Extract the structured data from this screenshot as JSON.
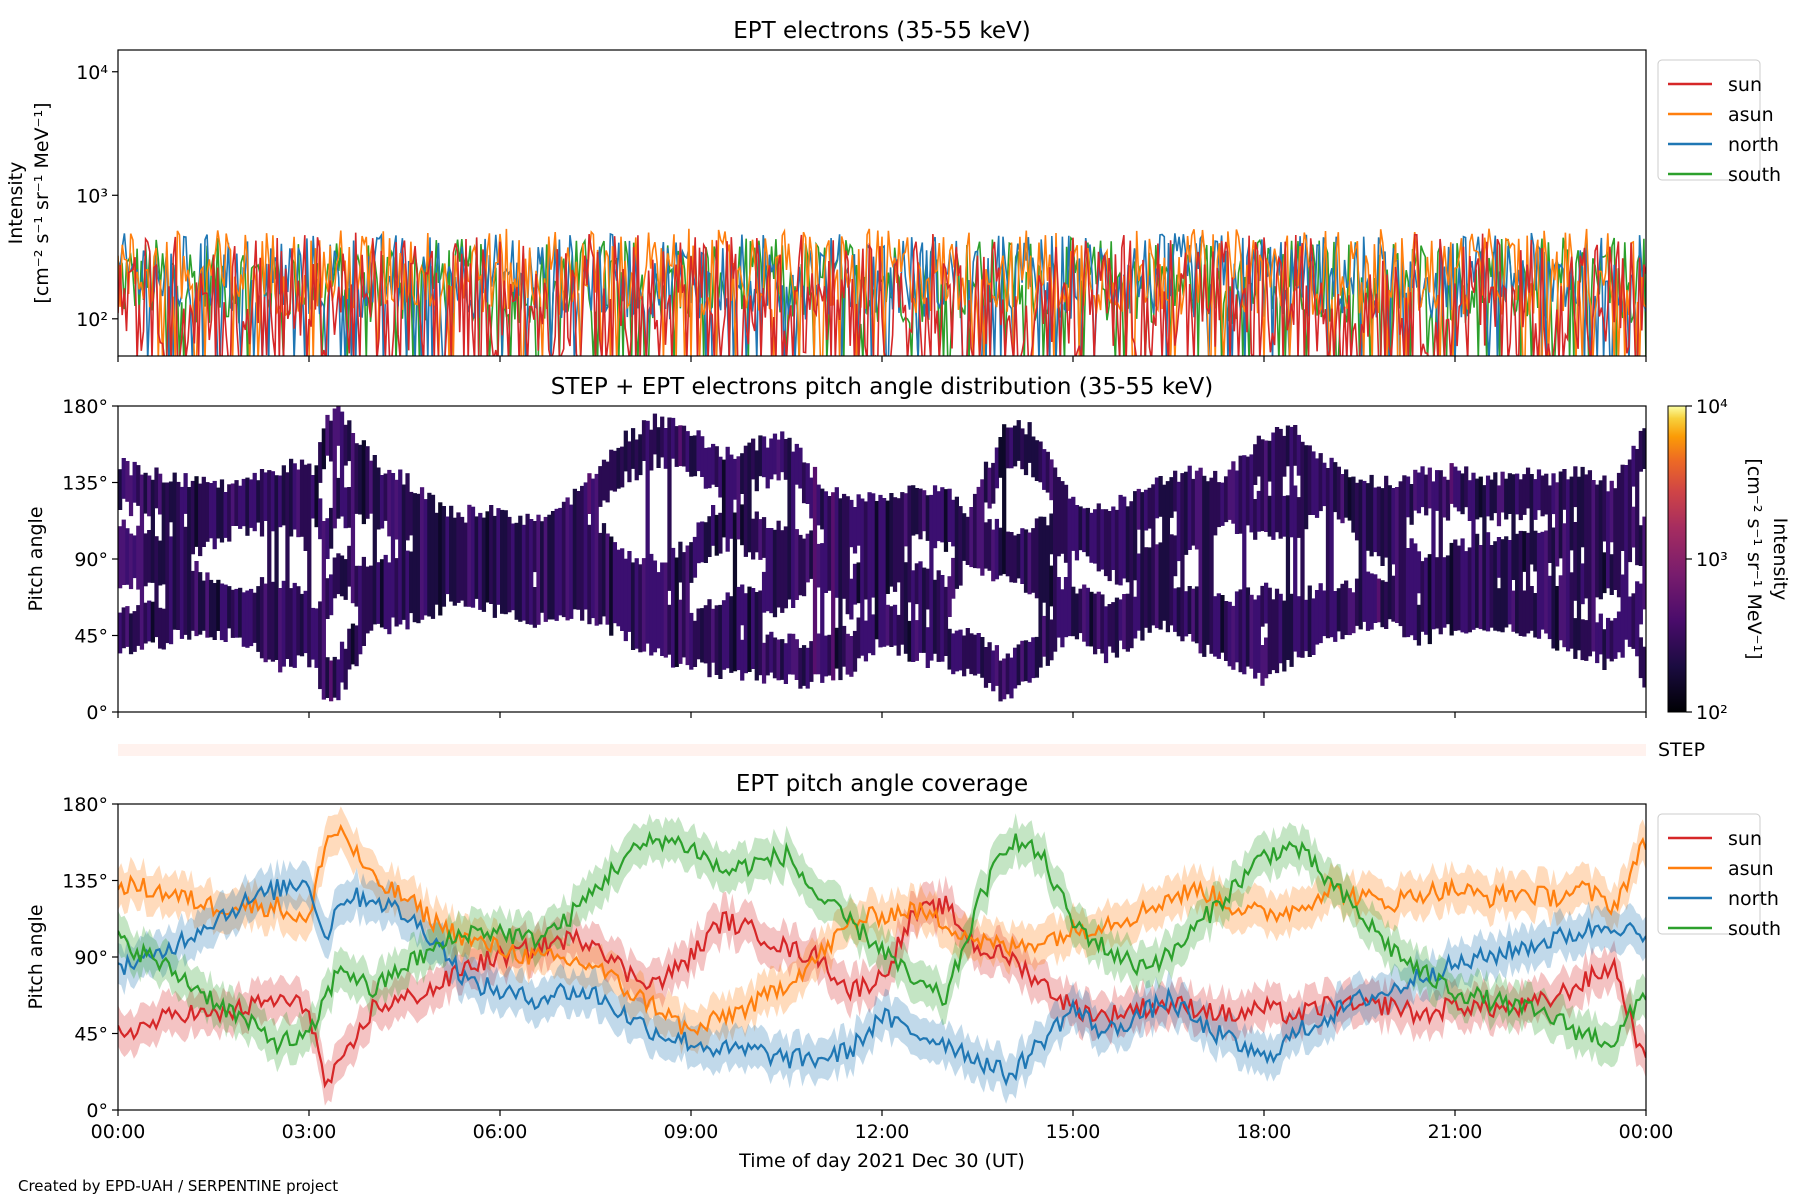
{
  "credit": "Created by EPD-UAH / SERPENTINE project",
  "chart_data": [
    {
      "id": "intensity",
      "type": "line",
      "title": "EPT electrons (35-55 keV)",
      "ylabel_lines": [
        "Intensity",
        "[cm⁻² s⁻¹ sr⁻¹ MeV⁻¹]"
      ],
      "yscale": "log",
      "ylim": [
        50,
        15000
      ],
      "yticks": [
        100,
        1000,
        10000
      ],
      "ytick_labels": [
        "10²",
        "10³",
        "10⁴"
      ],
      "xlim_hours": [
        0,
        24
      ],
      "legend_loc": "outside right",
      "series": [
        {
          "name": "sun",
          "color": "#d62728",
          "typical": 160,
          "spread": 0.55
        },
        {
          "name": "asun",
          "color": "#ff7f0e",
          "typical": 260,
          "spread": 0.35
        },
        {
          "name": "north",
          "color": "#1f77b4",
          "typical": 240,
          "spread": 0.35
        },
        {
          "name": "south",
          "color": "#2ca02c",
          "typical": 220,
          "spread": 0.35
        }
      ]
    },
    {
      "id": "pad",
      "type": "heatmap",
      "title": "STEP + EPT electrons pitch angle distribution (35-55 keV)",
      "ylabel": "Pitch angle",
      "ylim": [
        0,
        180
      ],
      "yticks": [
        0,
        45,
        90,
        135,
        180
      ],
      "ytick_labels": [
        "0°",
        "45°",
        "90°",
        "135°",
        "180°"
      ],
      "colorbar": {
        "label_lines": [
          "Intensity",
          "[cm⁻² s⁻¹ sr⁻¹ MeV⁻¹]"
        ],
        "scale": "log",
        "range": [
          100,
          10000
        ],
        "tick_labels": [
          "10²",
          "10³",
          "10⁴"
        ],
        "colormap": "inferno"
      },
      "typical_intensity": 200
    },
    {
      "id": "step",
      "type": "heatmap",
      "label": "STEP"
    },
    {
      "id": "coverage",
      "type": "line",
      "title": "EPT pitch angle coverage",
      "ylabel": "Pitch angle",
      "ylim": [
        0,
        180
      ],
      "yticks": [
        0,
        45,
        90,
        135,
        180
      ],
      "ytick_labels": [
        "0°",
        "45°",
        "90°",
        "135°",
        "180°"
      ],
      "xlabel": "Time of day 2021 Dec 30 (UT)",
      "xticks_hours": [
        0,
        3,
        6,
        9,
        12,
        15,
        18,
        21,
        24
      ],
      "xtick_labels": [
        "00:00",
        "03:00",
        "06:00",
        "09:00",
        "12:00",
        "15:00",
        "18:00",
        "21:00",
        "00:00"
      ],
      "legend_loc": "outside right",
      "band_halfwidth_deg": 12,
      "series": [
        {
          "name": "sun",
          "color": "#d62728",
          "x": [
            0,
            0.5,
            1,
            1.5,
            2,
            2.5,
            3,
            3.25,
            3.5,
            4,
            4.5,
            5,
            5.5,
            6,
            6.5,
            7,
            7.5,
            8,
            8.5,
            9,
            9.5,
            10,
            10.5,
            11,
            11.5,
            12,
            12.5,
            13,
            13.5,
            14,
            14.5,
            15,
            15.5,
            16,
            16.5,
            17,
            17.5,
            18,
            18.5,
            19,
            19.5,
            20,
            20.5,
            21,
            21.5,
            22,
            22.5,
            23,
            23.5,
            24
          ],
          "y": [
            45,
            50,
            58,
            55,
            60,
            65,
            60,
            15,
            25,
            60,
            65,
            72,
            85,
            90,
            95,
            100,
            100,
            80,
            75,
            90,
            112,
            105,
            95,
            90,
            70,
            78,
            115,
            120,
            95,
            90,
            75,
            60,
            55,
            60,
            62,
            60,
            55,
            60,
            55,
            62,
            60,
            62,
            55,
            62,
            60,
            60,
            65,
            75,
            85,
            25
          ]
        },
        {
          "name": "asun",
          "color": "#ff7f0e",
          "x": [
            0,
            0.5,
            1,
            1.5,
            2,
            2.5,
            3,
            3.25,
            3.5,
            4,
            4.5,
            5,
            5.5,
            6,
            6.5,
            7,
            7.5,
            8,
            8.5,
            9,
            9.5,
            10,
            10.5,
            11,
            11.5,
            12,
            12.5,
            13,
            13.5,
            14,
            14.5,
            15,
            15.5,
            16,
            16.5,
            17,
            17.5,
            18,
            18.5,
            19,
            19.5,
            20,
            20.5,
            21,
            21.5,
            22,
            22.5,
            23,
            23.5,
            24
          ],
          "y": [
            133,
            130,
            125,
            120,
            120,
            120,
            110,
            158,
            165,
            135,
            125,
            110,
            100,
            95,
            90,
            88,
            85,
            70,
            60,
            45,
            55,
            62,
            75,
            90,
            110,
            115,
            118,
            110,
            100,
            95,
            100,
            105,
            110,
            115,
            125,
            130,
            120,
            115,
            118,
            130,
            125,
            122,
            128,
            130,
            125,
            128,
            125,
            130,
            120,
            158
          ]
        },
        {
          "name": "north",
          "color": "#1f77b4",
          "x": [
            0,
            0.5,
            1,
            1.5,
            2,
            2.5,
            3,
            3.25,
            3.5,
            4,
            4.5,
            5,
            5.5,
            6,
            6.5,
            7,
            7.5,
            8,
            8.5,
            9,
            9.5,
            10,
            10.5,
            11,
            11.5,
            12,
            12.5,
            13,
            13.5,
            14,
            14.5,
            15,
            15.5,
            16,
            16.5,
            17,
            17.5,
            18,
            18.5,
            19,
            19.5,
            20,
            20.5,
            21,
            21.5,
            22,
            22.5,
            23,
            23.5,
            24
          ],
          "y": [
            85,
            88,
            100,
            112,
            122,
            130,
            135,
            100,
            125,
            125,
            115,
            100,
            75,
            70,
            65,
            70,
            68,
            55,
            45,
            40,
            35,
            35,
            30,
            30,
            35,
            55,
            45,
            40,
            30,
            20,
            40,
            60,
            45,
            55,
            65,
            50,
            40,
            30,
            45,
            55,
            65,
            70,
            80,
            85,
            90,
            95,
            100,
            105,
            110,
            100
          ]
        },
        {
          "name": "south",
          "color": "#2ca02c",
          "x": [
            0,
            0.5,
            1,
            1.5,
            2,
            2.5,
            3,
            3.25,
            3.5,
            4,
            4.5,
            5,
            5.5,
            6,
            6.5,
            7,
            7.5,
            8,
            8.5,
            9,
            9.5,
            10,
            10.5,
            11,
            11.5,
            12,
            12.5,
            13,
            13.5,
            14,
            14.5,
            15,
            15.5,
            16,
            16.5,
            17,
            17.5,
            18,
            18.5,
            19,
            19.5,
            20,
            20.5,
            21,
            21.5,
            22,
            22.5,
            23,
            23.5,
            24
          ],
          "y": [
            100,
            90,
            78,
            65,
            52,
            40,
            42,
            65,
            85,
            70,
            85,
            95,
            105,
            105,
            100,
            110,
            130,
            150,
            160,
            155,
            140,
            145,
            150,
            125,
            110,
            95,
            75,
            65,
            120,
            160,
            150,
            110,
            95,
            85,
            90,
            110,
            130,
            150,
            155,
            135,
            115,
            95,
            80,
            70,
            65,
            60,
            55,
            45,
            40,
            70
          ]
        }
      ]
    }
  ]
}
